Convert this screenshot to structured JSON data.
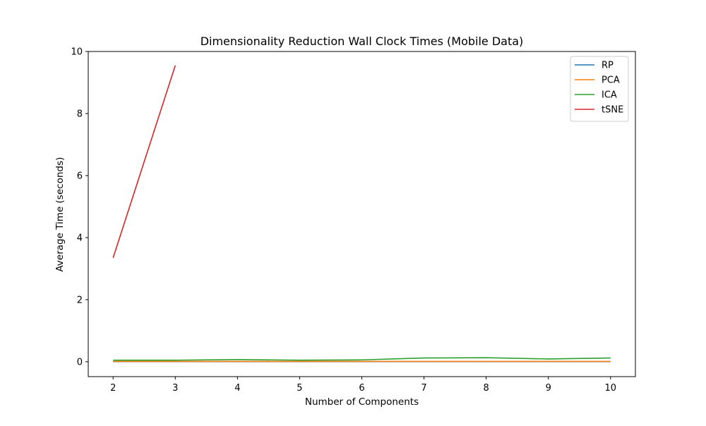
{
  "chart_data": {
    "type": "line",
    "title": "Dimensionality Reduction Wall Clock Times (Mobile Data)",
    "xlabel": "Number of Components",
    "ylabel": "Average Time (seconds)",
    "xlim": [
      1.6,
      10.4
    ],
    "ylim": [
      -0.48,
      10.0
    ],
    "xticks": [
      2,
      3,
      4,
      5,
      6,
      7,
      8,
      9,
      10
    ],
    "yticks": [
      0,
      2,
      4,
      6,
      8,
      10
    ],
    "grid": false,
    "legend_position": "top-right",
    "series": [
      {
        "name": "RP",
        "color": "#1f77b4",
        "x": [
          2,
          3,
          4,
          5,
          6,
          7,
          8,
          9,
          10
        ],
        "y": [
          0.005,
          0.005,
          0.005,
          0.005,
          0.005,
          0.005,
          0.005,
          0.005,
          0.005
        ]
      },
      {
        "name": "PCA",
        "color": "#ff7f0e",
        "x": [
          2,
          3,
          4,
          5,
          6,
          7,
          8,
          9,
          10
        ],
        "y": [
          0.01,
          0.01,
          0.01,
          0.01,
          0.01,
          0.01,
          0.01,
          0.01,
          0.01
        ]
      },
      {
        "name": "ICA",
        "color": "#2ca02c",
        "x": [
          2,
          3,
          4,
          5,
          6,
          7,
          8,
          9,
          10
        ],
        "y": [
          0.05,
          0.05,
          0.07,
          0.05,
          0.06,
          0.12,
          0.13,
          0.09,
          0.12
        ]
      },
      {
        "name": "tSNE",
        "color": "#d62728",
        "x": [
          2,
          3
        ],
        "y": [
          3.35,
          9.55
        ]
      }
    ]
  }
}
